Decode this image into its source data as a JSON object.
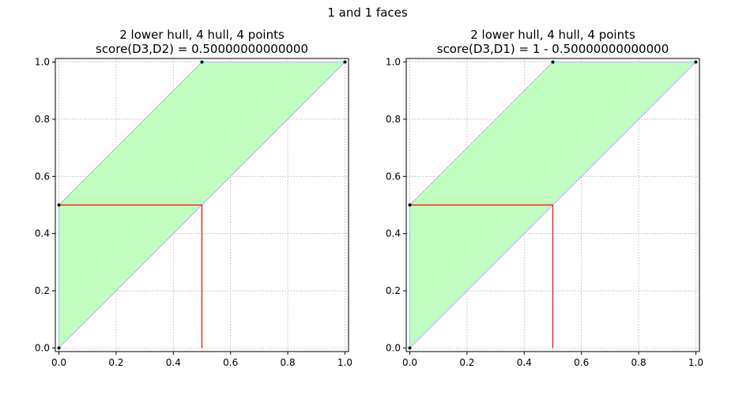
{
  "suptitle": "1 and 1 faces",
  "chart_data": [
    {
      "type": "area",
      "title": [
        "2 lower hull, 4 hull, 4 points",
        "score(D3,D2) = 0.50000000000000"
      ],
      "xlabel": "",
      "ylabel": "",
      "xlim": [
        0,
        1
      ],
      "ylim": [
        0,
        1
      ],
      "grid": true,
      "x_ticks": [
        "0.0",
        "0.2",
        "0.4",
        "0.6",
        "0.8",
        "1.0"
      ],
      "y_ticks": [
        "0.0",
        "0.2",
        "0.4",
        "0.6",
        "0.8",
        "1.0"
      ],
      "hull_polygon": [
        [
          0,
          0
        ],
        [
          0,
          0.5
        ],
        [
          0.5,
          1
        ],
        [
          1,
          1
        ]
      ],
      "points": [
        [
          0,
          0
        ],
        [
          0,
          0.5
        ],
        [
          0.5,
          1
        ],
        [
          1,
          1
        ]
      ],
      "score_lines": [
        [
          [
            0,
            0.5
          ],
          [
            0.5,
            0.5
          ]
        ],
        [
          [
            0.5,
            0.5
          ],
          [
            0.5,
            0
          ]
        ]
      ],
      "colors": {
        "fill": "#c0ffc0",
        "hull_edge": "#a8b8f0",
        "score_line": "#ff0000",
        "point": "#000000"
      }
    },
    {
      "type": "area",
      "title": [
        "2 lower hull, 4 hull, 4 points",
        "score(D3,D1) = 1 - 0.50000000000000"
      ],
      "xlabel": "",
      "ylabel": "",
      "xlim": [
        0,
        1
      ],
      "ylim": [
        0,
        1
      ],
      "grid": true,
      "x_ticks": [
        "0.0",
        "0.2",
        "0.4",
        "0.6",
        "0.8",
        "1.0"
      ],
      "y_ticks": [
        "0.0",
        "0.2",
        "0.4",
        "0.6",
        "0.8",
        "1.0"
      ],
      "hull_polygon": [
        [
          0,
          0
        ],
        [
          0,
          0.5
        ],
        [
          0.5,
          1
        ],
        [
          1,
          1
        ]
      ],
      "points": [
        [
          0,
          0
        ],
        [
          0,
          0.5
        ],
        [
          0.5,
          1
        ],
        [
          1,
          1
        ]
      ],
      "score_lines": [
        [
          [
            0,
            0.5
          ],
          [
            0.5,
            0.5
          ]
        ],
        [
          [
            0.5,
            0.5
          ],
          [
            0.5,
            0
          ]
        ]
      ],
      "colors": {
        "fill": "#c0ffc0",
        "hull_edge": "#a8b8f0",
        "score_line": "#ff0000",
        "point": "#000000"
      }
    }
  ]
}
